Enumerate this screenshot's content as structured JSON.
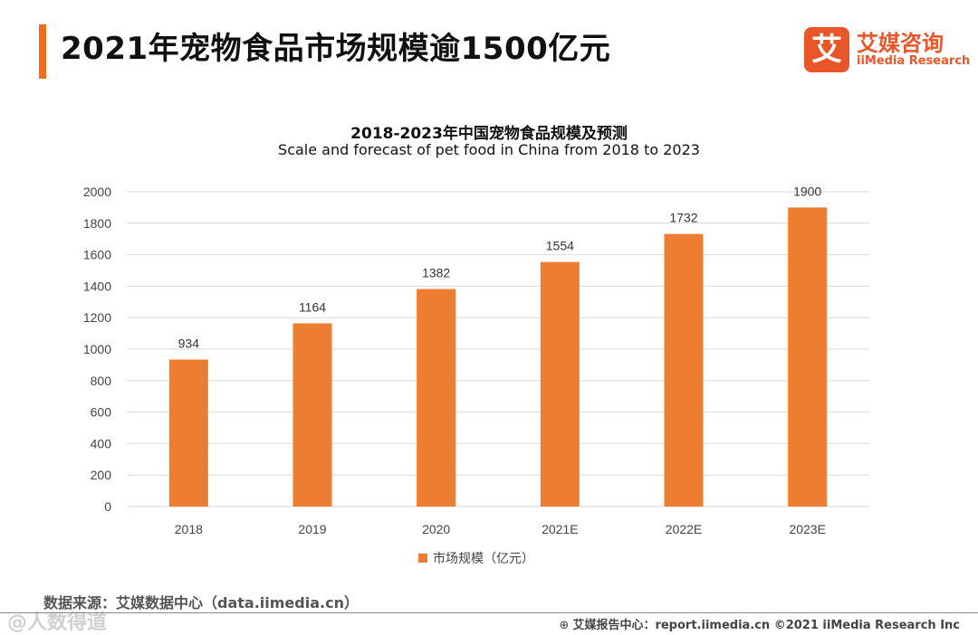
{
  "header": {
    "title": "2021年宠物食品市场规模逾1500亿元",
    "accent_color": "#f26b21"
  },
  "logo": {
    "mark": "艾",
    "name_cn": "艾媒咨询",
    "name_en": "iiMedia Research",
    "color": "#e8562a"
  },
  "chart_data": {
    "type": "bar",
    "title": "2018-2023年中国宠物食品规模及预测",
    "subtitle": "Scale and forecast of pet food in China from 2018 to 2023",
    "categories": [
      "2018",
      "2019",
      "2020",
      "2021E",
      "2022E",
      "2023E"
    ],
    "series": [
      {
        "name": "市场规模（亿元）",
        "values": [
          934,
          1164,
          1382,
          1554,
          1732,
          1900
        ],
        "color": "#ed7d31"
      }
    ],
    "ylim": [
      0,
      2000
    ],
    "yticks": [
      0,
      200,
      400,
      600,
      800,
      1000,
      1200,
      1400,
      1600,
      1800,
      2000
    ],
    "grid": true,
    "data_labels": true,
    "legend_position": "bottom"
  },
  "footer": {
    "source": "数据来源：艾媒数据中心（data.iimedia.cn）",
    "report": "艾媒报告中心：report.iimedia.cn ©2021  iiMedia Research  Inc",
    "watermark": "@人数得道"
  }
}
